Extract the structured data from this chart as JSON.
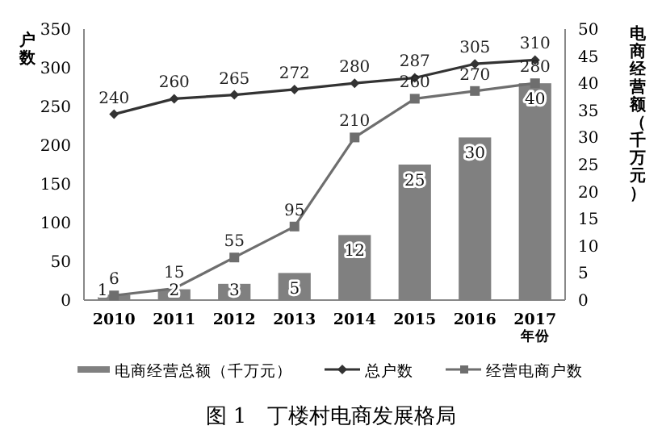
{
  "chart_data": {
    "type": "bar",
    "categories": [
      "2010",
      "2011",
      "2012",
      "2013",
      "2014",
      "2015",
      "2016",
      "2017"
    ],
    "series": [
      {
        "name": "电商经营总额（千万元）",
        "axis": "y2",
        "color": "#808080",
        "values": [
          1,
          2,
          3,
          5,
          12,
          25,
          30,
          40
        ]
      },
      {
        "name": "总户数",
        "type": "line",
        "marker": "diamond",
        "color": "#333333",
        "values": [
          240,
          260,
          265,
          272,
          280,
          287,
          305,
          310
        ]
      },
      {
        "name": "经营电商户数",
        "type": "line",
        "marker": "square",
        "color": "#6e6e6e",
        "values": [
          6,
          15,
          55,
          95,
          210,
          260,
          270,
          280
        ]
      }
    ],
    "ylim": [
      0,
      350
    ],
    "yticks": [
      0,
      50,
      100,
      150,
      200,
      250,
      300,
      350
    ],
    "y2lim": [
      0,
      50
    ],
    "y2ticks": [
      0,
      5,
      10,
      15,
      20,
      25,
      30,
      35,
      40,
      45,
      50
    ],
    "ylabel": "户数",
    "y2label": "电商经营额（千万元）",
    "xlabel": "年份",
    "data_labels": true,
    "legend": "bottom",
    "annotations": [
      "图 1　丁楼村电商发展格局"
    ]
  }
}
